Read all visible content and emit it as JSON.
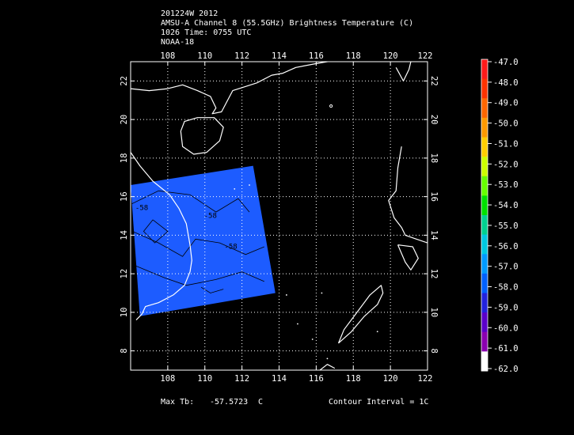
{
  "header": {
    "line1": "201224W 2012",
    "line2": "AMSU-A Channel 8 (55.5GHz) Brightness Temperature (C)",
    "line3": "1026 Time: 0755 UTC",
    "line4": "NOAA-18"
  },
  "map": {
    "lon_range": [
      106,
      122
    ],
    "lat_range": [
      7,
      23
    ],
    "lon_ticks": [
      "108",
      "110",
      "112",
      "114",
      "116",
      "118",
      "120",
      "122"
    ],
    "lat_ticks": [
      "8",
      "10",
      "12",
      "14",
      "16",
      "18",
      "20",
      "22"
    ],
    "grid": "dotted",
    "swath_corners_lonlat": [
      [
        106,
        16.6
      ],
      [
        112.6,
        17.6
      ],
      [
        113.8,
        11.0
      ],
      [
        106.5,
        9.8
      ]
    ],
    "contour_labels": [
      "-58",
      "-58",
      "-58"
    ],
    "contour_label_positions": [
      [
        110.3,
        14.9
      ],
      [
        111.4,
        13.3
      ],
      [
        106.6,
        15.3
      ]
    ],
    "swath_color": "#1d5cff",
    "coast_color": "#ffffff"
  },
  "colorbar": {
    "labels": [
      "-47.0",
      "-48.0",
      "-49.0",
      "-50.0",
      "-51.0",
      "-52.0",
      "-53.0",
      "-54.0",
      "-55.0",
      "-56.0",
      "-57.0",
      "-58.0",
      "-59.0",
      "-60.0",
      "-61.0",
      "-62.0"
    ],
    "colors": [
      "#ff1a1a",
      "#ff3300",
      "#ff6600",
      "#ff9900",
      "#ffcc00",
      "#ccff00",
      "#66ff00",
      "#00e000",
      "#00d090",
      "#00c8e0",
      "#0099ff",
      "#0060ff",
      "#2222dd",
      "#5a00c8",
      "#8a00b0",
      "#ffffff"
    ]
  },
  "footer": {
    "max_label": "Max Tb:",
    "max_value": "-57.5723",
    "max_unit": "C",
    "contour": "Contour Interval = 1C"
  }
}
